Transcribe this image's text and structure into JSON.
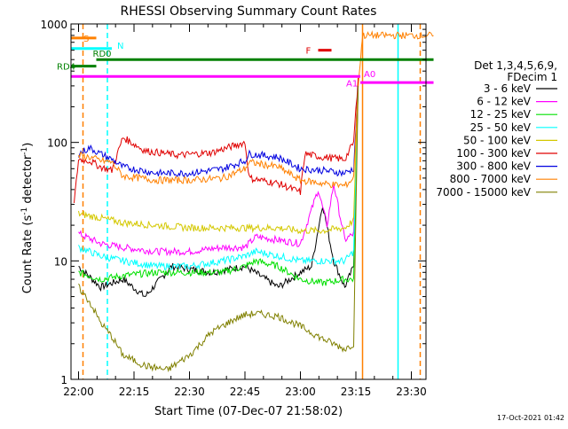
{
  "chart_data": {
    "type": "line",
    "title": "RHESSI Observing Summary Count Rates",
    "xlabel": "Start Time (07-Dec-07 21:58:02)",
    "ylabel": "Count Rate (s⁻¹ detector⁻¹)",
    "ylabel_parts": {
      "base": "Count Rate (s",
      "sup": "-1",
      "mid": " detector",
      "sup2": "-1",
      "end": ")"
    },
    "yscale": "log",
    "ylim": [
      1,
      1000
    ],
    "xlim_minutes": [
      21.966,
      23.566
    ],
    "x_units": "hours",
    "x_ticks": [
      {
        "value": 22.0,
        "label": "22:00"
      },
      {
        "value": 22.25,
        "label": "22:15"
      },
      {
        "value": 22.5,
        "label": "22:30"
      },
      {
        "value": 22.75,
        "label": "22:45"
      },
      {
        "value": 23.0,
        "label": "23:00"
      },
      {
        "value": 23.25,
        "label": "23:15"
      },
      {
        "value": 23.5,
        "label": "23:30"
      }
    ],
    "y_ticks": [
      {
        "value": 1,
        "label": "1"
      },
      {
        "value": 10,
        "label": "10"
      },
      {
        "value": 100,
        "label": "100"
      },
      {
        "value": 1000,
        "label": "1000"
      }
    ],
    "legend": {
      "placement": "right",
      "header": [
        "Det 1,3,4,5,6,9,",
        "FDecim 1"
      ],
      "entries": [
        {
          "label": "3 - 6 keV",
          "color": "#000000"
        },
        {
          "label": "6 - 12 keV",
          "color": "#ff00ff"
        },
        {
          "label": "12 - 25 keV",
          "color": "#00e000"
        },
        {
          "label": "25 - 50 keV",
          "color": "#00ffff"
        },
        {
          "label": "50 - 100 keV",
          "color": "#d4c800"
        },
        {
          "label": "100 - 300 keV",
          "color": "#e00000"
        },
        {
          "label": "300 - 800 keV",
          "color": "#0000e0"
        },
        {
          "label": "800 - 7000 keV",
          "color": "#ff8000"
        },
        {
          "label": "7000 - 15000 keV",
          "color": "#808000"
        }
      ]
    },
    "series": [
      {
        "name": "3 - 6 keV",
        "color": "#000000",
        "points": [
          [
            22.0,
            9
          ],
          [
            22.1,
            6
          ],
          [
            22.2,
            7
          ],
          [
            22.3,
            5
          ],
          [
            22.42,
            9
          ],
          [
            22.6,
            8
          ],
          [
            22.75,
            9
          ],
          [
            22.9,
            6
          ],
          [
            23.0,
            8
          ],
          [
            23.05,
            9
          ],
          [
            23.1,
            30
          ],
          [
            23.15,
            10
          ],
          [
            23.2,
            6
          ],
          [
            23.24,
            9
          ],
          [
            23.26,
            300
          ]
        ]
      },
      {
        "name": "6 - 12 keV",
        "color": "#ff00ff",
        "points": [
          [
            22.0,
            17
          ],
          [
            22.1,
            14
          ],
          [
            22.2,
            13
          ],
          [
            22.35,
            12
          ],
          [
            22.5,
            12
          ],
          [
            22.65,
            13
          ],
          [
            22.75,
            13
          ],
          [
            22.8,
            16
          ],
          [
            22.9,
            15
          ],
          [
            23.0,
            14
          ],
          [
            23.08,
            40
          ],
          [
            23.12,
            20
          ],
          [
            23.15,
            45
          ],
          [
            23.2,
            15
          ],
          [
            23.24,
            17
          ],
          [
            23.26,
            300
          ]
        ]
      },
      {
        "name": "12 - 25 keV",
        "color": "#00e000",
        "points": [
          [
            22.0,
            8
          ],
          [
            22.1,
            7
          ],
          [
            22.2,
            7.5
          ],
          [
            22.35,
            8
          ],
          [
            22.5,
            8
          ],
          [
            22.65,
            8
          ],
          [
            22.75,
            9
          ],
          [
            22.8,
            10
          ],
          [
            22.9,
            9
          ],
          [
            23.0,
            7
          ],
          [
            23.1,
            6.5
          ],
          [
            23.2,
            7
          ],
          [
            23.24,
            7
          ],
          [
            23.26,
            300
          ]
        ]
      },
      {
        "name": "25 - 50 keV",
        "color": "#00ffff",
        "points": [
          [
            22.0,
            13
          ],
          [
            22.1,
            11
          ],
          [
            22.2,
            10
          ],
          [
            22.35,
            9
          ],
          [
            22.5,
            9
          ],
          [
            22.65,
            10
          ],
          [
            22.75,
            11
          ],
          [
            22.8,
            12
          ],
          [
            22.9,
            11
          ],
          [
            23.0,
            10
          ],
          [
            23.1,
            10
          ],
          [
            23.2,
            10
          ],
          [
            23.24,
            12
          ],
          [
            23.26,
            300
          ]
        ]
      },
      {
        "name": "50 - 100 keV",
        "color": "#d4c800",
        "points": [
          [
            22.0,
            25
          ],
          [
            22.1,
            23
          ],
          [
            22.2,
            21
          ],
          [
            22.35,
            20
          ],
          [
            22.5,
            19
          ],
          [
            22.65,
            19
          ],
          [
            22.75,
            19
          ],
          [
            22.8,
            19
          ],
          [
            22.9,
            19
          ],
          [
            23.0,
            18
          ],
          [
            23.1,
            18
          ],
          [
            23.2,
            19
          ],
          [
            23.24,
            22
          ],
          [
            23.26,
            300
          ]
        ]
      },
      {
        "name": "100 - 300 keV",
        "color": "#e00000",
        "points": [
          [
            21.98,
            30
          ],
          [
            22.0,
            72
          ],
          [
            22.05,
            70
          ],
          [
            22.1,
            62
          ],
          [
            22.15,
            58
          ],
          [
            22.2,
            110
          ],
          [
            22.3,
            85
          ],
          [
            22.45,
            78
          ],
          [
            22.6,
            82
          ],
          [
            22.75,
            100
          ],
          [
            22.77,
            50
          ],
          [
            22.9,
            45
          ],
          [
            23.0,
            38
          ],
          [
            23.02,
            80
          ],
          [
            23.1,
            75
          ],
          [
            23.2,
            72
          ],
          [
            23.24,
            100
          ],
          [
            23.26,
            350
          ]
        ]
      },
      {
        "name": "300 - 800 keV",
        "color": "#0000e0",
        "points": [
          [
            22.0,
            80
          ],
          [
            22.05,
            90
          ],
          [
            22.1,
            80
          ],
          [
            22.15,
            72
          ],
          [
            22.2,
            62
          ],
          [
            22.35,
            55
          ],
          [
            22.5,
            55
          ],
          [
            22.65,
            60
          ],
          [
            22.75,
            70
          ],
          [
            22.77,
            80
          ],
          [
            22.9,
            75
          ],
          [
            23.0,
            60
          ],
          [
            23.1,
            58
          ],
          [
            23.2,
            55
          ],
          [
            23.24,
            60
          ],
          [
            23.26,
            300
          ]
        ]
      },
      {
        "name": "800 - 7000 keV",
        "color": "#ff8000",
        "points": [
          [
            22.0,
            78
          ],
          [
            22.05,
            75
          ],
          [
            22.1,
            70
          ],
          [
            22.15,
            68
          ],
          [
            22.2,
            52
          ],
          [
            22.35,
            48
          ],
          [
            22.5,
            48
          ],
          [
            22.65,
            50
          ],
          [
            22.75,
            60
          ],
          [
            22.77,
            68
          ],
          [
            22.9,
            62
          ],
          [
            23.0,
            48
          ],
          [
            23.1,
            45
          ],
          [
            23.2,
            43
          ],
          [
            23.24,
            50
          ],
          [
            23.26,
            300
          ],
          [
            23.28,
            800
          ],
          [
            23.6,
            800
          ]
        ]
      },
      {
        "name": "7000 - 15000 keV",
        "color": "#808000",
        "points": [
          [
            22.0,
            6
          ],
          [
            22.05,
            4.5
          ],
          [
            22.1,
            3
          ],
          [
            22.15,
            2.3
          ],
          [
            22.2,
            1.6
          ],
          [
            22.3,
            1.3
          ],
          [
            22.4,
            1.2
          ],
          [
            22.5,
            1.6
          ],
          [
            22.6,
            2.5
          ],
          [
            22.7,
            3.2
          ],
          [
            22.75,
            3.5
          ],
          [
            22.8,
            3.6
          ],
          [
            22.9,
            3.4
          ],
          [
            23.0,
            2.8
          ],
          [
            23.1,
            2.2
          ],
          [
            23.2,
            1.8
          ],
          [
            23.24,
            2
          ],
          [
            23.26,
            300
          ]
        ]
      }
    ],
    "flags": [
      {
        "label": "S",
        "color": "#ff8000",
        "x0": 21.966,
        "x1": 22.08,
        "y": 760
      },
      {
        "label": "N",
        "color": "#00ffff",
        "x0": 21.966,
        "x1": 22.15,
        "y": 620
      },
      {
        "label": "RD0",
        "color": "#008000",
        "x0": 22.08,
        "x1": 23.6,
        "y": 500
      },
      {
        "label": "RD4",
        "color": "#008000",
        "x0": 21.966,
        "x1": 22.08,
        "y": 440
      },
      {
        "label": "F",
        "color": "#e00000",
        "x0": 23.08,
        "x1": 23.14,
        "y": 600
      },
      {
        "label": "A1",
        "color": "#ff00ff",
        "x0": 21.966,
        "x1": 23.27,
        "y": 360
      },
      {
        "label": "A0",
        "color": "#ff00ff",
        "x0": 23.27,
        "x1": 23.6,
        "y": 320
      }
    ],
    "vertical_lines": [
      {
        "x": 22.02,
        "color": "#ff8000",
        "dashed": true
      },
      {
        "x": 22.13,
        "color": "#00ffff",
        "dashed": true
      },
      {
        "x": 23.28,
        "color": "#ff8000",
        "dashed": false
      },
      {
        "x": 23.44,
        "color": "#00ffff",
        "dashed": false
      },
      {
        "x": 23.54,
        "color": "#ff8000",
        "dashed": true
      }
    ]
  },
  "footer": {
    "timestamp": "17-Oct-2021 01:42"
  }
}
